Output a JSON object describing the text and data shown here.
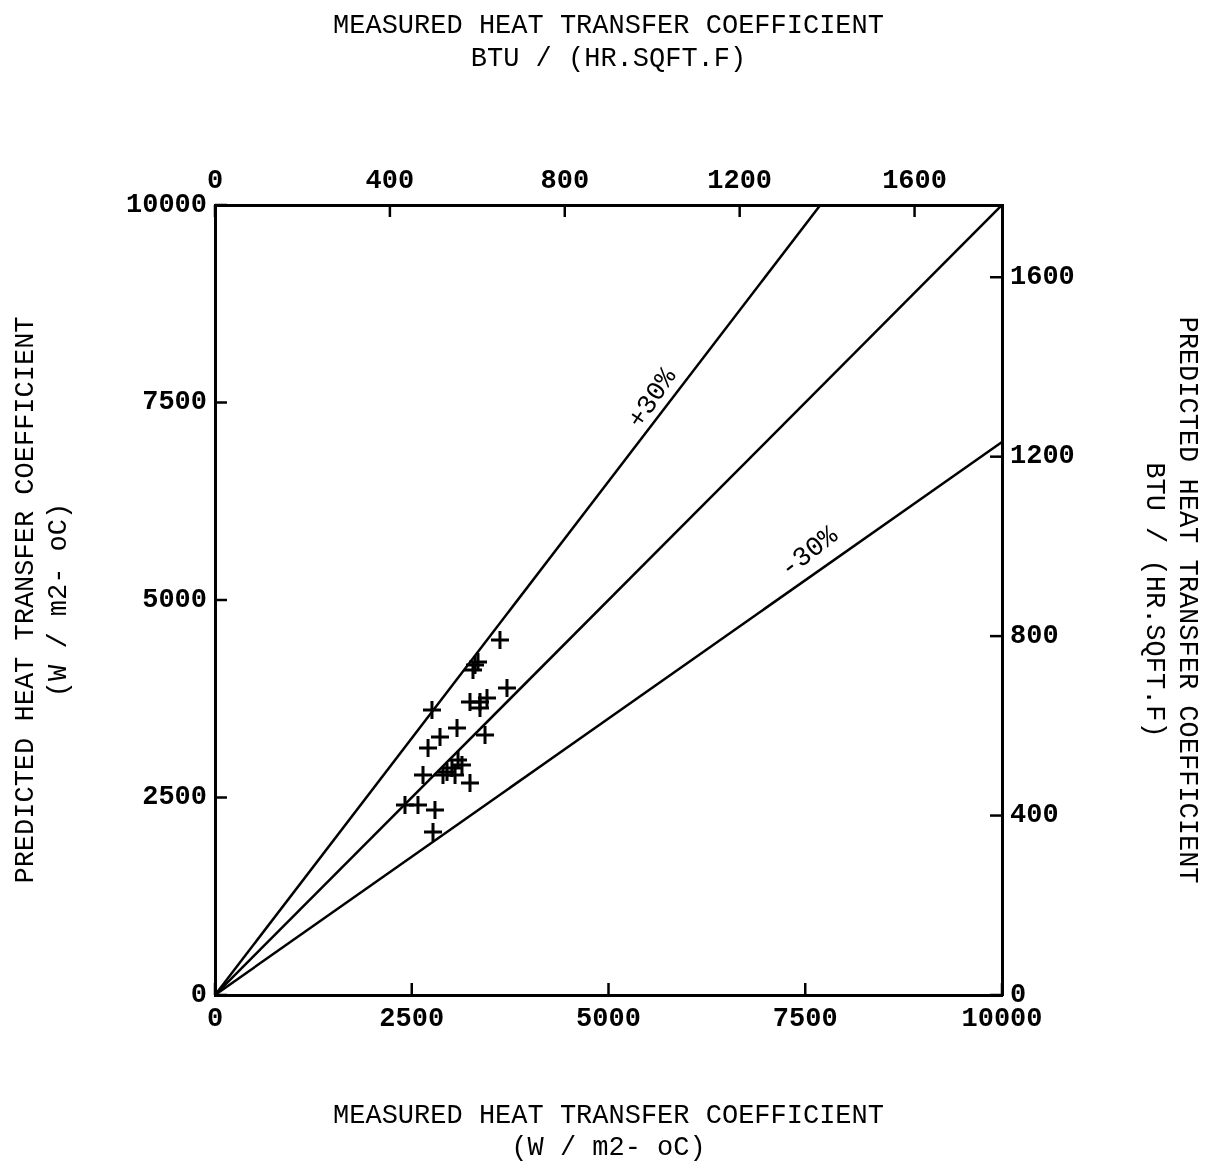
{
  "chart_data": {
    "type": "scatter",
    "xlabel": "MEASURED HEAT TRANSFER COEFFICIENT\n(W / m2- oC)",
    "ylabel": "PREDICTED HEAT TRANSFER COEFFICIENT\n(W / m2- oC)",
    "x2label": "MEASURED HEAT TRANSFER COEFFICIENT\nBTU / (HR.SQFT.F)",
    "y2label": "PREDICTED HEAT TRANSFER COEFFICIENT\nBTU / (HR.SQFT.F)",
    "xlim": [
      0,
      10000
    ],
    "xticks": [
      0,
      2500,
      5000,
      7500,
      10000
    ],
    "ylim": [
      0,
      10000
    ],
    "yticks": [
      0,
      2500,
      5000,
      7500,
      10000
    ],
    "x2lim": [
      0,
      1800
    ],
    "x2ticks": [
      0,
      400,
      800,
      1200,
      1600
    ],
    "y2lim": [
      0,
      1761
    ],
    "y2ticks": [
      0,
      400,
      800,
      1200,
      1600
    ],
    "series": [
      {
        "marker": "cross",
        "color": "#000000",
        "x": [
          3621,
          3304,
          3342,
          3278,
          3710,
          2757,
          3240,
          3367,
          3456,
          3367,
          3431,
          3075,
          2859,
          2707,
          3088,
          2948,
          3011,
          3050,
          3138,
          2897,
          2643,
          3240,
          2414,
          2579,
          2795,
          2770
        ],
        "values": [
          4494,
          4177,
          4215,
          4114,
          3886,
          3608,
          3709,
          3709,
          3760,
          3633,
          3291,
          3380,
          3266,
          3127,
          2975,
          2823,
          2873,
          2785,
          2911,
          2785,
          2785,
          2684,
          2405,
          2405,
          2342,
          2063
        ]
      },
      {
        "type": "line",
        "color": "#000000",
        "x": [
          0,
          7692
        ],
        "values": [
          0,
          10000
        ]
      },
      {
        "type": "line",
        "color": "#000000",
        "x": [
          0,
          10000
        ],
        "values": [
          0,
          10000
        ]
      },
      {
        "type": "line",
        "color": "#000000",
        "x": [
          0,
          10000
        ],
        "values": [
          0,
          7000
        ]
      }
    ],
    "annotations": [
      "+30%",
      "-30%"
    ]
  }
}
